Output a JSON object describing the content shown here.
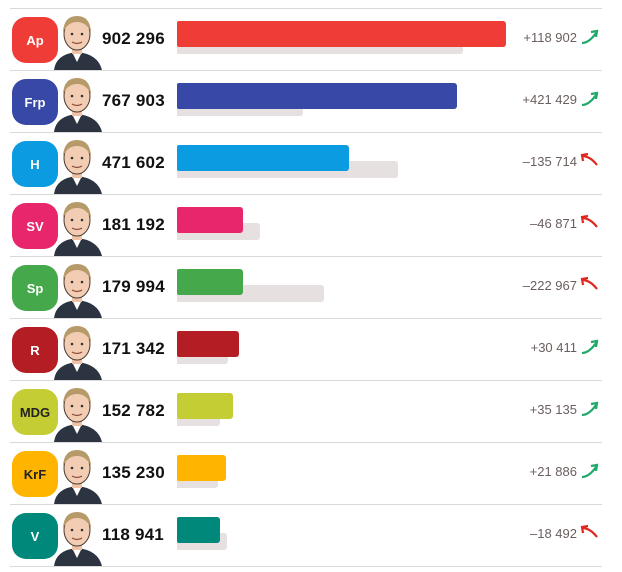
{
  "chart_data": {
    "type": "bar",
    "categories": [
      "Ap",
      "Frp",
      "H",
      "SV",
      "Sp",
      "R",
      "MDG",
      "KrF",
      "V"
    ],
    "series": [
      {
        "values": [
          902296,
          767903,
          471602,
          181192,
          179994,
          171342,
          152782,
          135230,
          118941
        ]
      },
      {
        "values": [
          783394,
          346474,
          607316,
          228063,
          402961,
          140931,
          117647,
          113344,
          137433
        ]
      }
    ],
    "changes": [
      "+118 902",
      "+421 429",
      "–135 714",
      "–46 871",
      "–222 967",
      "+30 411",
      "+35 135",
      "+21 886",
      "–18 492"
    ],
    "vote_labels": [
      "902 296",
      "767 903",
      "471 602",
      "181 192",
      "179 994",
      "171 342",
      "152 782",
      "135 230",
      "118 941"
    ],
    "trend": [
      "up",
      "up",
      "down",
      "down",
      "down",
      "up",
      "up",
      "up",
      "down"
    ],
    "colors": [
      "#f03c36",
      "#3748a6",
      "#0a9be0",
      "#e8266b",
      "#45a94c",
      "#b31d23",
      "#c4cd34",
      "#ffb400",
      "#00897b"
    ],
    "badge_text_colors": [
      "#ffffff",
      "#ffffff",
      "#ffffff",
      "#ffffff",
      "#ffffff",
      "#ffffff",
      "#222222",
      "#222222",
      "#ffffff"
    ],
    "previous_bar_color": "#e6e0e0",
    "up_color": "#1ea86a",
    "down_color": "#e0261f",
    "grid": false
  }
}
